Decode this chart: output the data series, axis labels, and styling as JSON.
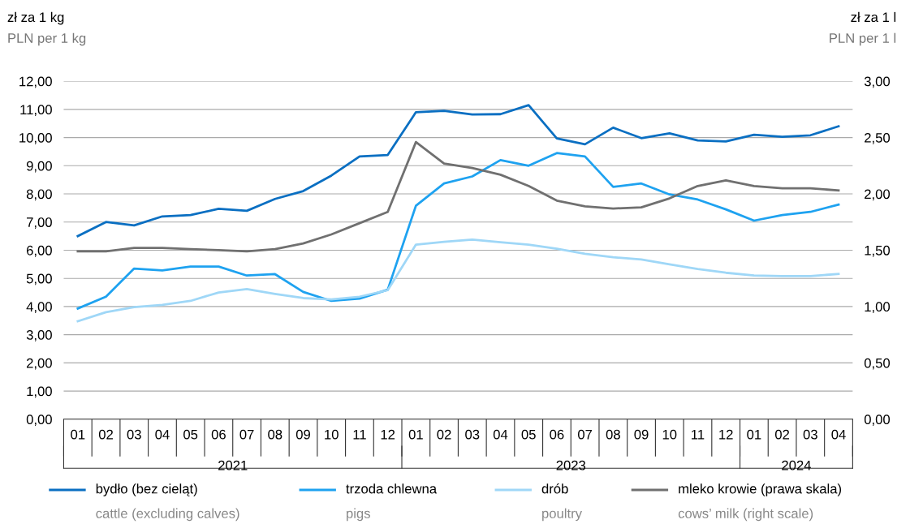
{
  "chart_data": {
    "type": "line",
    "ylabel": "zł za 1 kg\nPLN per 1 kg",
    "y2label": "zł za 1 l\nPLN per 1 l",
    "categories": [
      "01",
      "02",
      "03",
      "04",
      "05",
      "06",
      "07",
      "08",
      "09",
      "10",
      "11",
      "12",
      "01",
      "02",
      "03",
      "04",
      "05",
      "06",
      "07",
      "08",
      "09",
      "10",
      "11",
      "12",
      "01",
      "02",
      "03",
      "04"
    ],
    "annotations": [
      "2021",
      "2023",
      "2024"
    ],
    "series": [
      {
        "name": "bydło (bez cieląt)\ncattle (excluding calves)",
        "color": "#0a6fc2",
        "values": [
          6.5,
          7.0,
          6.88,
          7.2,
          7.25,
          7.47,
          7.4,
          7.82,
          8.1,
          8.65,
          9.33,
          9.38,
          10.9,
          10.95,
          10.82,
          10.83,
          11.15,
          9.97,
          9.76,
          10.35,
          9.98,
          10.15,
          9.9,
          9.86,
          10.1,
          10.03,
          10.08,
          10.4
        ]
      },
      {
        "name": "trzoda chlewna\npigs",
        "color": "#1ea2f0",
        "values": [
          3.93,
          4.35,
          5.35,
          5.28,
          5.42,
          5.42,
          5.1,
          5.15,
          4.52,
          4.2,
          4.28,
          4.6,
          7.58,
          8.37,
          8.62,
          9.2,
          9.0,
          9.45,
          9.33,
          8.25,
          8.37,
          7.98,
          7.8,
          7.45,
          7.05,
          7.25,
          7.36,
          7.62
        ]
      },
      {
        "name": "drób\npoultry",
        "color": "#9fd7f7",
        "values": [
          3.48,
          3.8,
          3.98,
          4.06,
          4.2,
          4.5,
          4.62,
          4.45,
          4.3,
          4.25,
          4.35,
          4.58,
          6.2,
          6.3,
          6.38,
          6.28,
          6.2,
          6.05,
          5.87,
          5.75,
          5.67,
          5.5,
          5.33,
          5.2,
          5.1,
          5.08,
          5.08,
          5.16
        ]
      },
      {
        "name": "mleko krowie (prawa skala)\ncows’ milk (right scale)",
        "color": "#707070",
        "axis": "y2",
        "values": [
          1.49,
          1.49,
          1.52,
          1.52,
          1.51,
          1.5,
          1.49,
          1.51,
          1.56,
          1.64,
          1.74,
          1.84,
          2.46,
          2.27,
          2.23,
          2.17,
          2.07,
          1.94,
          1.89,
          1.87,
          1.88,
          1.96,
          2.07,
          2.12,
          2.07,
          2.05,
          2.05,
          2.03
        ]
      }
    ],
    "ylim": [
      0,
      12
    ],
    "yticks": [
      {
        "value": 0,
        "label": "0,00"
      },
      {
        "value": 1,
        "label": "1,00"
      },
      {
        "value": 2,
        "label": "2,00"
      },
      {
        "value": 3,
        "label": "3,00"
      },
      {
        "value": 4,
        "label": "4,00"
      },
      {
        "value": 5,
        "label": "5,00"
      },
      {
        "value": 6,
        "label": "6,00"
      },
      {
        "value": 7,
        "label": "7,00"
      },
      {
        "value": 8,
        "label": "8,00"
      },
      {
        "value": 9,
        "label": "9,00"
      },
      {
        "value": 10,
        "label": "10,00"
      },
      {
        "value": 11,
        "label": "11,00"
      },
      {
        "value": 12,
        "label": "12,00"
      }
    ],
    "y2lim": [
      0,
      3
    ],
    "y2ticks": [
      {
        "value": 0,
        "label": "0,00"
      },
      {
        "value": 0.5,
        "label": "0,50"
      },
      {
        "value": 1,
        "label": "1,00"
      },
      {
        "value": 1.5,
        "label": "1,50"
      },
      {
        "value": 2,
        "label": "2,00"
      },
      {
        "value": 2.5,
        "label": "2,50"
      },
      {
        "value": 3,
        "label": "3,00"
      }
    ],
    "grid": "y",
    "legend": "bottom",
    "marker": "none",
    "line_style": "solid"
  }
}
